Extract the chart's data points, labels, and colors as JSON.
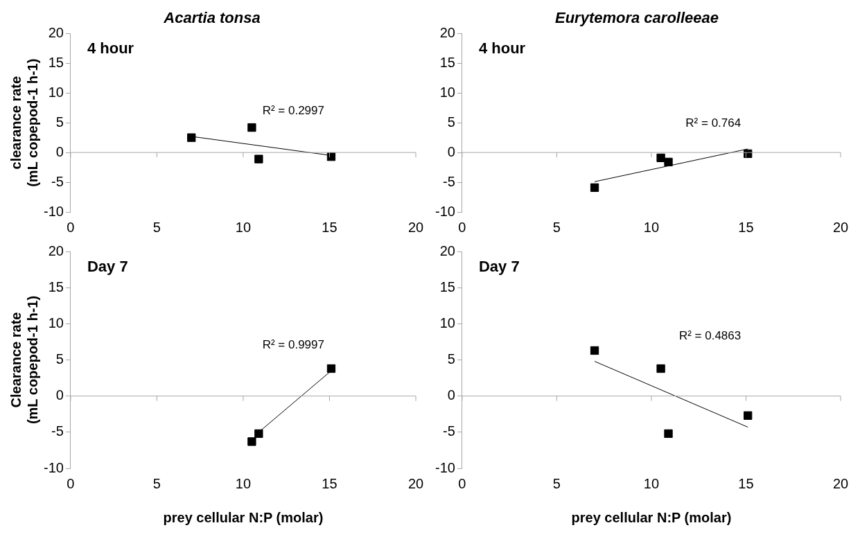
{
  "chart_data": [
    {
      "type": "scatter",
      "title": "Acartia tonsa",
      "ylabel": "clearance rate (mL copepod-1 h-1)",
      "xlim": [
        0,
        20
      ],
      "xticks": [
        0,
        5,
        10,
        15,
        20
      ],
      "ylim": [
        -10,
        20
      ],
      "yticks": [
        -10,
        -5,
        0,
        5,
        10,
        15,
        20
      ],
      "annotations": [
        "4 hour",
        "R² = 0.2997"
      ],
      "series": [
        {
          "color": "#000000",
          "marker": "square",
          "x": [
            7,
            10.5,
            10.9,
            15.1
          ],
          "values": [
            2.5,
            4.2,
            -1.1,
            -0.7
          ]
        },
        {
          "type": "line",
          "color": "#000000",
          "x": [
            7,
            15.1
          ],
          "values": [
            2.7,
            -0.5
          ]
        }
      ]
    },
    {
      "type": "scatter",
      "title": "Eurytemora carolleeae",
      "xlim": [
        0,
        20
      ],
      "xticks": [
        0,
        5,
        10,
        15,
        20
      ],
      "ylim": [
        -10,
        20
      ],
      "yticks": [
        -10,
        -5,
        0,
        5,
        10,
        15,
        20
      ],
      "annotations": [
        "4 hour",
        "R² = 0.764"
      ],
      "series": [
        {
          "color": "#000000",
          "marker": "square",
          "x": [
            7,
            10.5,
            10.9,
            15.1
          ],
          "values": [
            -5.9,
            -0.9,
            -1.6,
            -0.2
          ]
        },
        {
          "type": "line",
          "color": "#000000",
          "x": [
            7,
            15.1
          ],
          "values": [
            -4.9,
            0.6
          ]
        }
      ]
    },
    {
      "type": "scatter",
      "xlabel": "prey cellular N:P (molar)",
      "ylabel": "Clearance rate (mL copepod-1 h-1)",
      "xlim": [
        0,
        20
      ],
      "xticks": [
        0,
        5,
        10,
        15,
        20
      ],
      "ylim": [
        -10,
        20
      ],
      "yticks": [
        -10,
        -5,
        0,
        5,
        10,
        15,
        20
      ],
      "annotations": [
        "Day 7",
        "R² = 0.9997"
      ],
      "series": [
        {
          "color": "#000000",
          "marker": "square",
          "x": [
            10.5,
            10.9,
            15.1
          ],
          "values": [
            -6.3,
            -5.2,
            3.8
          ]
        },
        {
          "type": "line",
          "color": "#000000",
          "x": [
            10.9,
            15.1
          ],
          "values": [
            -5,
            3.5
          ]
        }
      ]
    },
    {
      "type": "scatter",
      "xlabel": "prey cellular N:P (molar)",
      "xlim": [
        0,
        20
      ],
      "xticks": [
        0,
        5,
        10,
        15,
        20
      ],
      "ylim": [
        -10,
        20
      ],
      "yticks": [
        -10,
        -5,
        0,
        5,
        10,
        15,
        20
      ],
      "annotations": [
        "Day 7",
        "R² = 0.4863"
      ],
      "series": [
        {
          "color": "#000000",
          "marker": "square",
          "x": [
            7,
            10.5,
            10.9,
            15.1
          ],
          "values": [
            6.3,
            3.8,
            -5.2,
            -2.7
          ]
        },
        {
          "type": "line",
          "color": "#000000",
          "x": [
            7,
            15.1
          ],
          "values": [
            4.8,
            -4.3
          ]
        }
      ]
    }
  ]
}
